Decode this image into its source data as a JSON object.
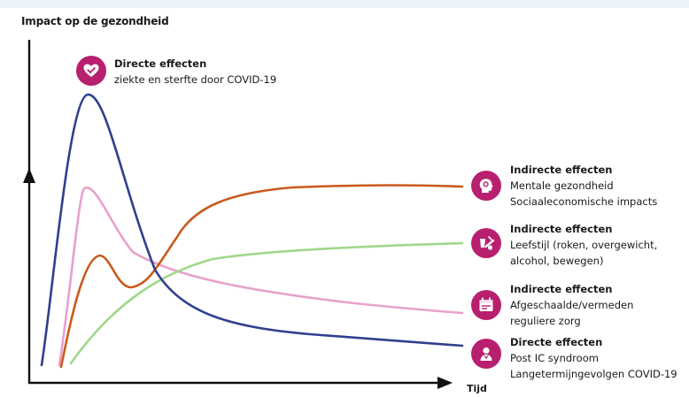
{
  "axes": {
    "y_title": "Impact op de gezondheid",
    "x_title": "Tijd"
  },
  "colors": {
    "direct_covid": "#2f3f8f",
    "mental": "#c85a1c",
    "lifestyle": "#9fd88a",
    "care": "#e7a1cc",
    "icon_bg": "#b8206f"
  },
  "annotations": [
    {
      "key": "direct",
      "icon": "heart-icon",
      "heading": "Directe effecten",
      "lines": [
        "ziekte en sterfte door COVID-19"
      ]
    },
    {
      "key": "mental",
      "icon": "head-icon",
      "heading": "Indirecte effecten",
      "lines": [
        "Mentale gezondheid",
        "Sociaaleconomische impacts"
      ]
    },
    {
      "key": "lifestyle",
      "icon": "lifestyle-icon",
      "heading": "Indirecte effecten",
      "lines": [
        "Leefstijl (roken, overgewicht,",
        "alcohol, bewegen)"
      ]
    },
    {
      "key": "care",
      "icon": "calendar-icon",
      "heading": "Indirecte effecten",
      "lines": [
        "Afgeschaalde/vermeden",
        "reguliere zorg"
      ]
    },
    {
      "key": "postic",
      "icon": "patient-icon",
      "heading": "Directe effecten",
      "lines": [
        "Post IC syndroom",
        "Langetermijngevolgen COVID-19"
      ]
    }
  ]
}
